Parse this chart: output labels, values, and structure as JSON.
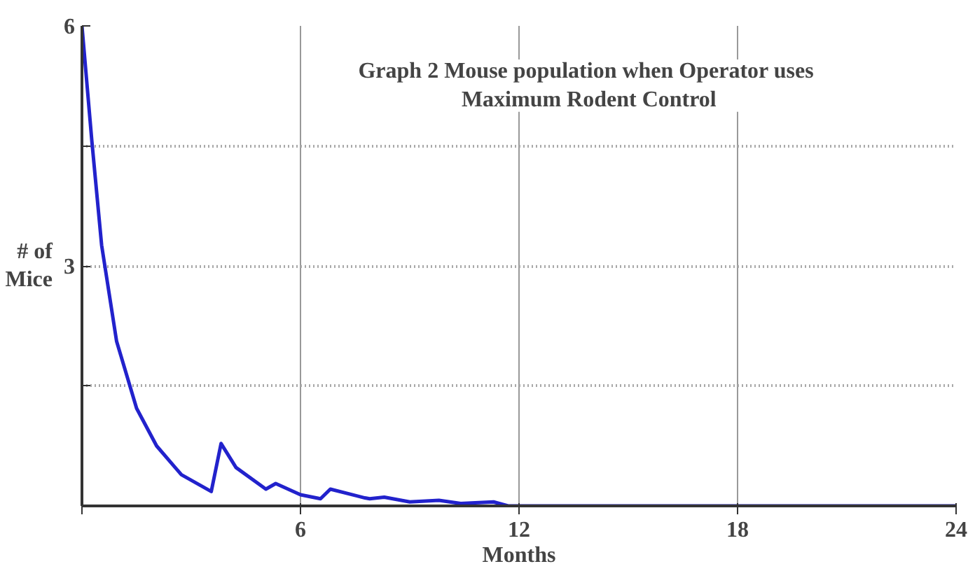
{
  "chart_data": {
    "type": "line",
    "title": "Graph 2  Mouse population when Operator uses\nMaximum Rodent Control",
    "xlabel": "Months",
    "ylabel": "# of\nMice",
    "x": [
      0,
      0.27,
      0.54,
      0.95,
      1.5,
      2.05,
      2.73,
      3.55,
      3.82,
      4.23,
      5.05,
      5.32,
      6.0,
      6.55,
      6.82,
      7.77,
      7.9,
      8.3,
      9.0,
      9.8,
      10.4,
      11.3,
      11.7,
      24
    ],
    "series": [
      {
        "color": "#2222cc",
        "values": [
          6,
          4.57,
          3.26,
          2.06,
          1.22,
          0.75,
          0.39,
          0.18,
          0.78,
          0.48,
          0.21,
          0.28,
          0.14,
          0.09,
          0.21,
          0.1,
          0.09,
          0.11,
          0.05,
          0.07,
          0.03,
          0.05,
          0,
          0
        ]
      }
    ],
    "xlim": [
      0,
      24
    ],
    "ylim": [
      0,
      6
    ],
    "xticks": [
      {
        "value": 0,
        "label": null
      },
      6,
      12,
      18,
      24
    ],
    "yticks": [
      {
        "value": 1.5,
        "label": null
      },
      3,
      {
        "value": 4.5,
        "label": null
      },
      6
    ],
    "grid": true,
    "marker": "none",
    "line_style": "solid"
  }
}
